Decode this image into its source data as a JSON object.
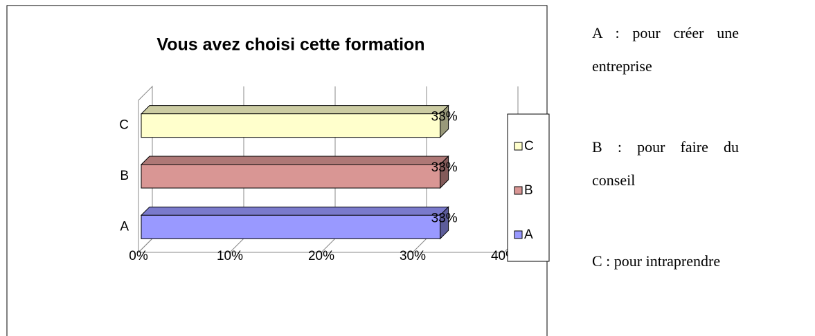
{
  "chart_data": {
    "type": "bar",
    "orientation": "horizontal",
    "title": "Vous avez choisi cette formation",
    "categories": [
      "A",
      "B",
      "C"
    ],
    "values": [
      33,
      33,
      33
    ],
    "value_labels": [
      "33%",
      "33%",
      "33%"
    ],
    "colors": [
      "#9999ff",
      "#d99694",
      "#ffffcc"
    ],
    "xlim": [
      0,
      40
    ],
    "xticks": [
      {
        "value": 0,
        "label": "0%"
      },
      {
        "value": 10,
        "label": "10%"
      },
      {
        "value": 20,
        "label": "20%"
      },
      {
        "value": 30,
        "label": "30%"
      },
      {
        "value": 40,
        "label": "40%"
      }
    ],
    "grid": true,
    "legend": "right"
  },
  "notes": [
    "A : pour créer une entreprise",
    "B : pour faire du conseil",
    "C : pour intraprendre"
  ]
}
